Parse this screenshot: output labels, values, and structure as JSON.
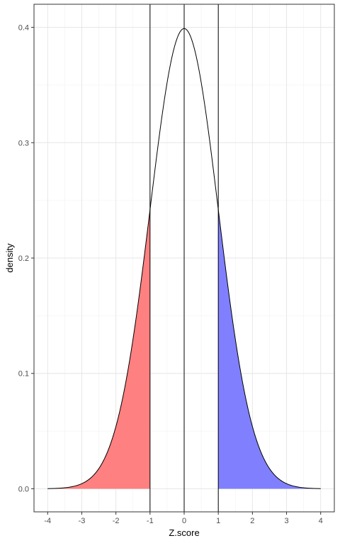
{
  "chart_data": {
    "type": "area",
    "title": "",
    "xlabel": "Z.score",
    "ylabel": "density",
    "xlim": [
      -4.4,
      4.4
    ],
    "ylim": [
      -0.02,
      0.42
    ],
    "x_ticks": [
      -4,
      -3,
      -2,
      -1,
      0,
      1,
      2,
      3,
      4
    ],
    "x_tick_labels": [
      "-4",
      "-3",
      "-2",
      "-1",
      "0",
      "1",
      "2",
      "3",
      "4"
    ],
    "y_ticks": [
      0.0,
      0.1,
      0.2,
      0.3,
      0.4
    ],
    "y_tick_labels": [
      "0.0",
      "0.1",
      "0.2",
      "0.3",
      "0.4"
    ],
    "grid": true,
    "legend": "none",
    "curve": {
      "distribution": "standard normal",
      "x": [
        -4.0,
        -3.75,
        -3.5,
        -3.25,
        -3.0,
        -2.75,
        -2.5,
        -2.25,
        -2.0,
        -1.75,
        -1.5,
        -1.25,
        -1.0,
        -0.75,
        -0.5,
        -0.25,
        0.0,
        0.25,
        0.5,
        0.75,
        1.0,
        1.25,
        1.5,
        1.75,
        2.0,
        2.25,
        2.5,
        2.75,
        3.0,
        3.25,
        3.5,
        3.75,
        4.0
      ],
      "y": [
        0.0001,
        0.0004,
        0.0009,
        0.002,
        0.0044,
        0.0091,
        0.0175,
        0.0317,
        0.054,
        0.0863,
        0.1295,
        0.1826,
        0.242,
        0.3011,
        0.3521,
        0.3867,
        0.3989,
        0.3867,
        0.3521,
        0.3011,
        0.242,
        0.1826,
        0.1295,
        0.0863,
        0.054,
        0.0317,
        0.0175,
        0.0091,
        0.0044,
        0.002,
        0.0009,
        0.0004,
        0.0001
      ],
      "color": "#000000"
    },
    "shaded_regions": [
      {
        "from": -4.0,
        "to": -1.0,
        "color": "#ff8080"
      },
      {
        "from": 1.0,
        "to": 4.0,
        "color": "#8080ff"
      }
    ],
    "vertical_lines": [
      -1,
      0,
      1
    ]
  }
}
